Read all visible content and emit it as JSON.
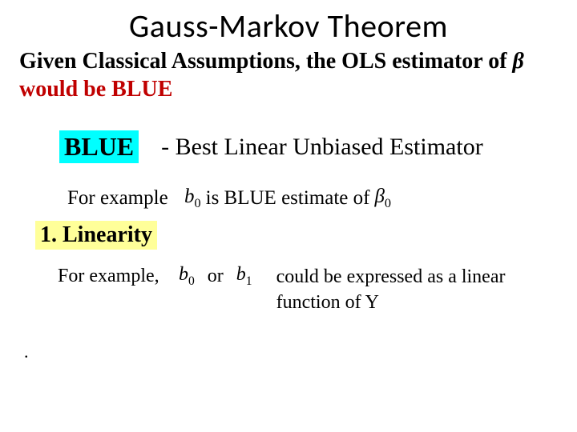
{
  "title": "Gauss-Markov Theorem",
  "given": {
    "part1": "Given Classical Assumptions, the OLS estimator of ",
    "symbol_beta": "β",
    "part2": "would be BLUE"
  },
  "blue_label": "BLUE",
  "blue_def": "- Best Linear Unbiased Estimator",
  "example1": {
    "label": "For example",
    "sym_b0": "b",
    "sub0a": "0",
    "mid": " is BLUE estimate of ",
    "sym_beta0": "β",
    "sub0b": "0"
  },
  "section1": "1. Linearity",
  "example2": {
    "label": "For example,",
    "sym_b0": "b",
    "sub0a": "0",
    "or": "or",
    "sym_b1": "b",
    "sub1": "1",
    "tail": "could be expressed as a linear function of Y"
  },
  "dot": ".",
  "colors": {
    "red": "#c00000",
    "cyan_highlight": "#00ffff",
    "yellow_highlight": "#ffff99",
    "text": "#000000",
    "background": "#ffffff"
  },
  "typography": {
    "title_font": "Calibri",
    "body_font": "Times New Roman",
    "title_size_pt": 40,
    "body_size_pt": 28
  }
}
